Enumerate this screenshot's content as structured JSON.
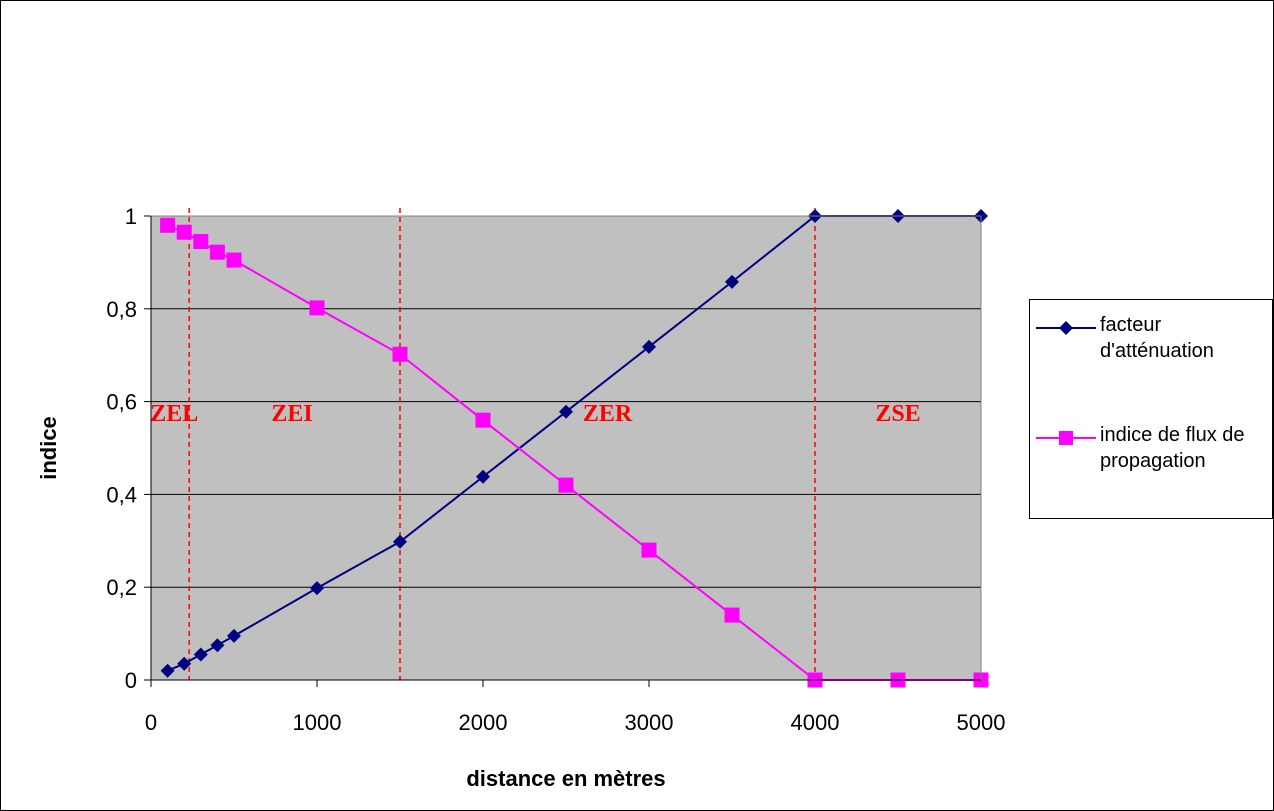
{
  "chart_data": {
    "type": "line",
    "title": "",
    "xlabel": "distance en mètres",
    "ylabel": "indice",
    "xlim": [
      0,
      5000
    ],
    "ylim": [
      0,
      1
    ],
    "xticks": [
      "0",
      "1000",
      "2000",
      "3000",
      "4000",
      "5000"
    ],
    "yticks": [
      "0",
      "0,2",
      "0,4",
      "0,6",
      "0,8",
      "1"
    ],
    "grid": true,
    "legend_position": "right",
    "plot_background": "#c0c0c0",
    "series": [
      {
        "name": "facteur d'atténuation",
        "color": "#000080",
        "marker": "diamond",
        "x": [
          100,
          200,
          300,
          400,
          500,
          1000,
          1500,
          2000,
          2500,
          3000,
          3500,
          4000,
          4500,
          5000
        ],
        "y": [
          0.02,
          0.035,
          0.055,
          0.075,
          0.095,
          0.198,
          0.298,
          0.438,
          0.578,
          0.718,
          0.858,
          1.0,
          1.0,
          1.0
        ]
      },
      {
        "name": "indice de flux de propagation",
        "color": "#ff00ff",
        "marker": "square",
        "x": [
          100,
          200,
          300,
          400,
          500,
          1000,
          1500,
          2000,
          2500,
          3000,
          3500,
          4000,
          4500,
          5000
        ],
        "y": [
          0.98,
          0.965,
          0.945,
          0.922,
          0.905,
          0.802,
          0.702,
          0.56,
          0.42,
          0.28,
          0.14,
          0.0,
          0.0,
          0.0
        ]
      }
    ],
    "zones": {
      "boundaries": [
        230,
        1500,
        4000
      ],
      "boundary_color": "#ff0000",
      "labels": [
        {
          "text": "ZEL",
          "x": 140
        },
        {
          "text": "ZEI",
          "x": 850
        },
        {
          "text": "ZER",
          "x": 2750
        },
        {
          "text": "ZSE",
          "x": 4500
        }
      ],
      "label_y": 0.575,
      "label_color": "#ff0000"
    }
  }
}
